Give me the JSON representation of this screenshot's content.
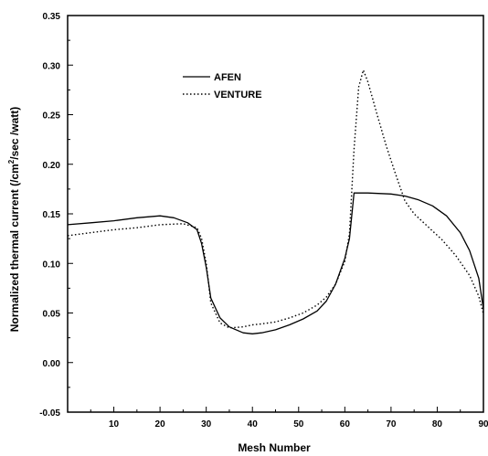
{
  "chart_data": {
    "type": "line",
    "title": "",
    "xlabel": "Mesh Number",
    "ylabel_main": "Normalized thermal current (/cm",
    "ylabel_sup": "2",
    "ylabel_rest": "/sec /watt)",
    "xlim": [
      0,
      90
    ],
    "ylim": [
      -0.05,
      0.35
    ],
    "xticks": [
      10,
      20,
      30,
      40,
      50,
      60,
      70,
      80,
      90
    ],
    "yticks": [
      -0.05,
      0.0,
      0.05,
      0.1,
      0.15,
      0.2,
      0.25,
      0.3,
      0.35
    ],
    "ytick_labels": [
      "-0.05",
      "0.00",
      "0.05",
      "0.10",
      "0.15",
      "0.20",
      "0.25",
      "0.30",
      "0.35"
    ],
    "grid": false,
    "legend_position": "upper-left-center",
    "series": [
      {
        "name": "AFEN",
        "style": "solid",
        "x": [
          0,
          5,
          10,
          15,
          20,
          23,
          26,
          28,
          29,
          30,
          31,
          33,
          35,
          38,
          40,
          42,
          45,
          48,
          51,
          54,
          56,
          58,
          60,
          61,
          62,
          65,
          70,
          73,
          76,
          79,
          82,
          85,
          87,
          89,
          90
        ],
        "y": [
          0.139,
          0.141,
          0.143,
          0.146,
          0.148,
          0.146,
          0.141,
          0.134,
          0.12,
          0.096,
          0.065,
          0.045,
          0.036,
          0.03,
          0.029,
          0.03,
          0.033,
          0.038,
          0.044,
          0.052,
          0.062,
          0.079,
          0.105,
          0.125,
          0.171,
          0.171,
          0.17,
          0.168,
          0.164,
          0.158,
          0.148,
          0.131,
          0.113,
          0.085,
          0.054
        ]
      },
      {
        "name": "VENTURE",
        "style": "dotted",
        "x": [
          0,
          5,
          10,
          15,
          20,
          25,
          28,
          29,
          30,
          31,
          33,
          35,
          38,
          40,
          42,
          45,
          48,
          51,
          54,
          56,
          58,
          60,
          61,
          62,
          63,
          64,
          65,
          67,
          69,
          71,
          73,
          75,
          78,
          81,
          84,
          87,
          89,
          90
        ],
        "y": [
          0.128,
          0.131,
          0.134,
          0.136,
          0.139,
          0.14,
          0.136,
          0.125,
          0.1,
          0.06,
          0.04,
          0.035,
          0.036,
          0.038,
          0.039,
          0.041,
          0.045,
          0.05,
          0.058,
          0.066,
          0.079,
          0.102,
          0.13,
          0.215,
          0.278,
          0.295,
          0.283,
          0.25,
          0.218,
          0.19,
          0.163,
          0.15,
          0.137,
          0.124,
          0.108,
          0.088,
          0.067,
          0.049
        ]
      }
    ]
  }
}
